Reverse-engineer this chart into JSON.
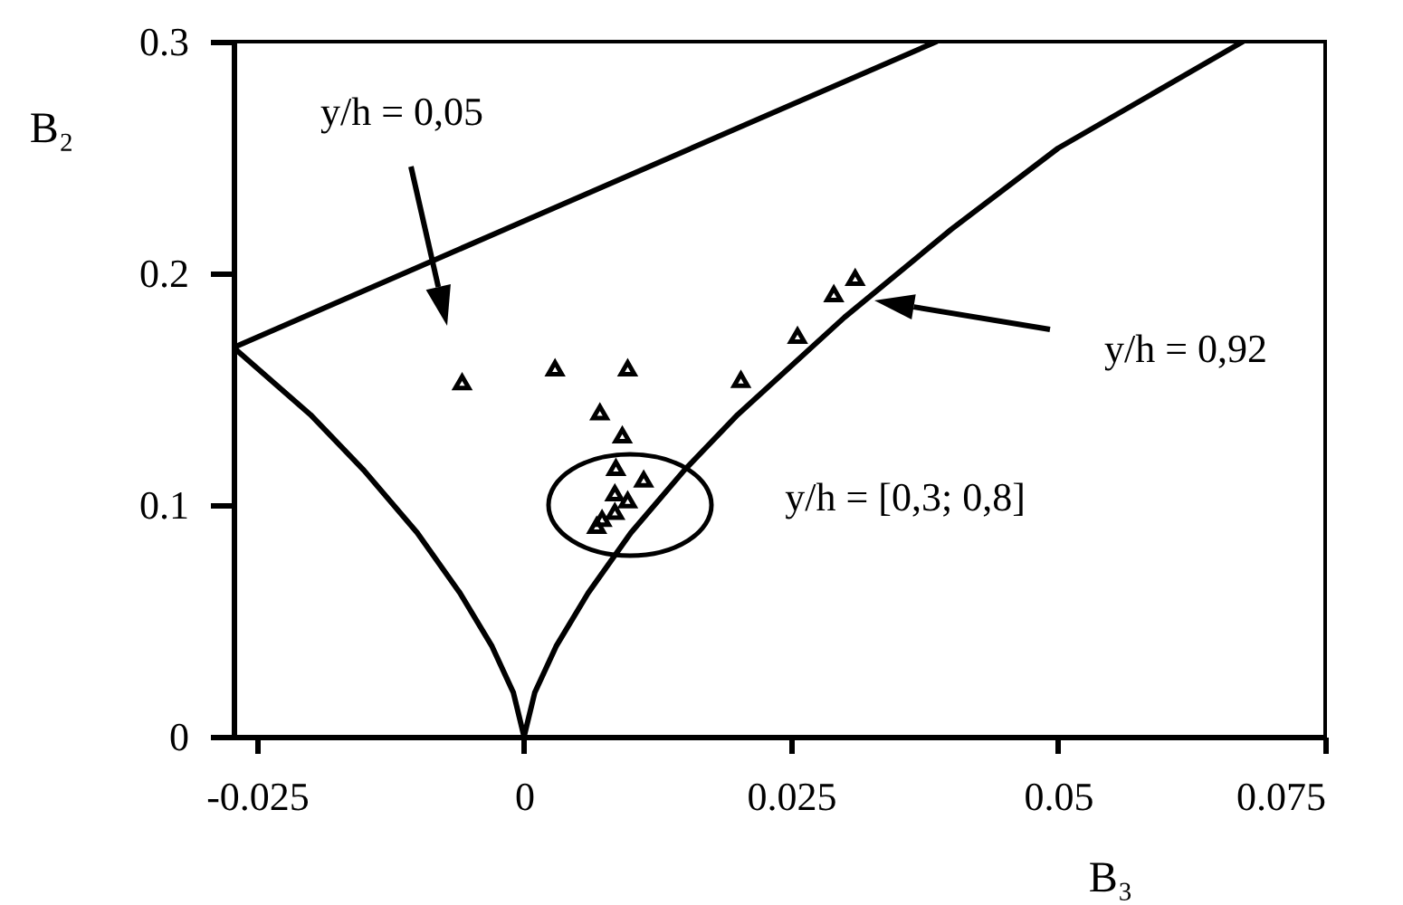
{
  "chart_data": {
    "type": "scatter",
    "xlabel": "B₃",
    "ylabel": "B₂",
    "xlim": [
      -0.0272,
      0.075
    ],
    "ylim": [
      0,
      0.3
    ],
    "xticks": [
      -0.025,
      0,
      0.025,
      0.05,
      0.075
    ],
    "yticks": [
      0,
      0.1,
      0.2,
      0.3
    ],
    "grid": false,
    "series": [
      {
        "type": "line",
        "color": "#000000",
        "x": [
          -0.0272,
          -0.02,
          -0.015,
          -0.01,
          -0.006,
          -0.003,
          -0.001,
          0,
          0.001,
          0.003,
          0.006,
          0.01,
          0.015,
          0.02,
          0.03,
          0.04,
          0.05,
          0.0673
        ],
        "values": [
          0.168,
          0.139,
          0.115,
          0.088,
          0.062,
          0.039,
          0.019,
          0,
          0.019,
          0.039,
          0.062,
          0.088,
          0.115,
          0.139,
          0.181,
          0.219,
          0.254,
          0.3
        ]
      },
      {
        "type": "line",
        "color": "#000000",
        "x": [
          -0.0272,
          0.0386
        ],
        "values": [
          0.168,
          0.3
        ]
      },
      {
        "marker": "triangle",
        "color": "#000000",
        "x": [
          -0.0058,
          0.0029,
          0.0097,
          0.0071,
          0.0092,
          0.0086,
          0.0112,
          0.0085,
          0.0097,
          0.008,
          0.0073,
          0.0068,
          0.0085,
          0.0203,
          0.0256,
          0.029,
          0.031
        ],
        "values": [
          0.153,
          0.159,
          0.159,
          0.14,
          0.13,
          0.116,
          0.111,
          0.105,
          0.102,
          null,
          0.094,
          0.091,
          0.097,
          0.154,
          0.173,
          0.191,
          0.198
        ]
      }
    ],
    "annotations": [
      "y/h = 0,05",
      "y/h = 0,92",
      "y/h = [0,3; 0,8]"
    ]
  }
}
